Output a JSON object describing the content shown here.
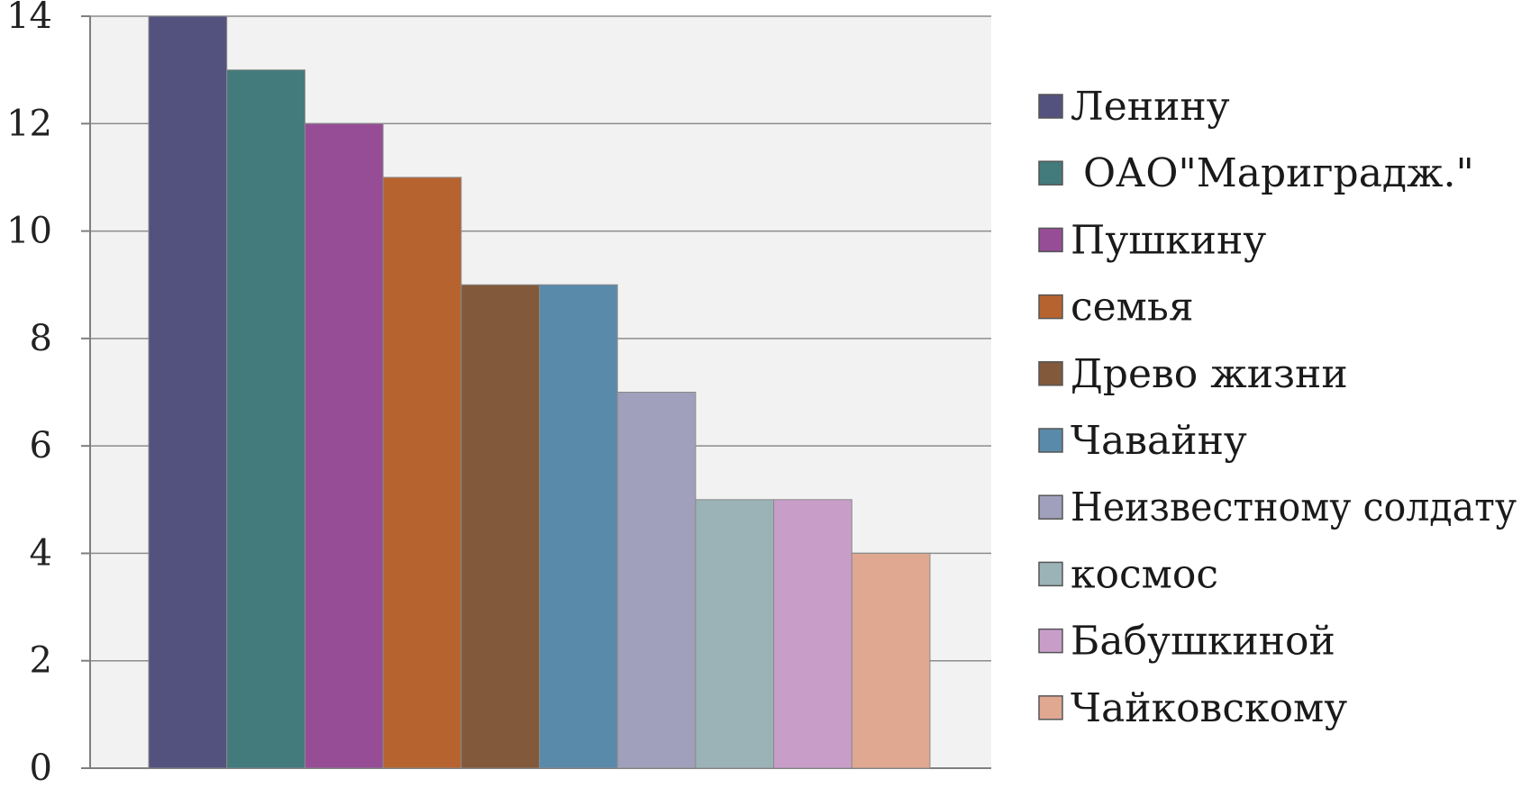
{
  "chart_data": {
    "type": "bar",
    "title": "",
    "xlabel": "",
    "ylabel": "",
    "ylim": [
      0,
      14
    ],
    "yticks": [
      0,
      2,
      4,
      6,
      8,
      10,
      12,
      14
    ],
    "grid": true,
    "legend_position": "right",
    "plot_background": "#f2f2f2",
    "series": [
      {
        "name": "Ленину",
        "value": 14,
        "color": "#53527f"
      },
      {
        "name": " ОАО\"Мариградж.\"",
        "value": 13,
        "color": "#437a7c"
      },
      {
        "name": "Пушкину",
        "value": 12,
        "color": "#964d96"
      },
      {
        "name": "семья",
        "value": 11,
        "color": "#b7632f"
      },
      {
        "name": "Древо жизни",
        "value": 9,
        "color": "#82593b"
      },
      {
        "name": "Чавайну",
        "value": 9,
        "color": "#5a8aaa"
      },
      {
        "name": "Неизвестному солдату",
        "value": 7,
        "color": "#a0a0bc"
      },
      {
        "name": "космос",
        "value": 5,
        "color": "#9bb3b6"
      },
      {
        "name": "Бабушкиной",
        "value": 5,
        "color": "#c89ec9"
      },
      {
        "name": "Чайковскому",
        "value": 4,
        "color": "#e0a890"
      }
    ]
  }
}
